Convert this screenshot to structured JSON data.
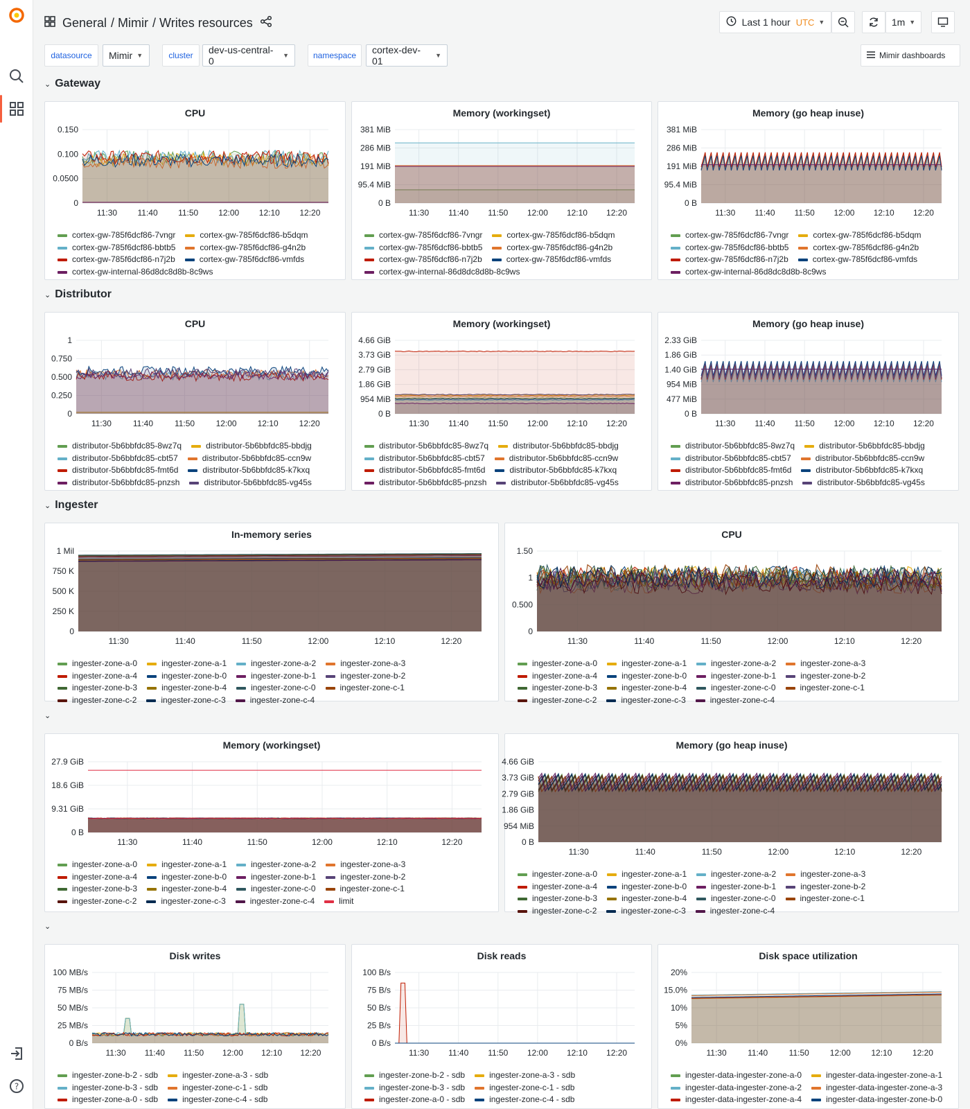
{
  "header": {
    "breadcrumb": [
      "General",
      "/ Mimir",
      "/ Writes resources"
    ],
    "time_range": "Last 1 hour",
    "timezone": "UTC",
    "refresh": "1m"
  },
  "variables": [
    {
      "label": "datasource",
      "value": "Mimir"
    },
    {
      "label": "cluster",
      "value": "dev-us-central-0"
    },
    {
      "label": "namespace",
      "value": "cortex-dev-01"
    }
  ],
  "links": {
    "dashboards": "Mimir dashboards"
  },
  "rows": {
    "gateway": "Gateway",
    "distributor": "Distributor",
    "ingester": "Ingester"
  },
  "colors": {
    "green": "#73bf69",
    "yellow": "#f2cc0c",
    "cyan": "#8ab8ff",
    "lightblue": "#6ed0e0",
    "orange": "#ff780a",
    "red": "#f2495c",
    "blue": "#5794f2",
    "darkblue": "#1f60c4",
    "purple": "#b877d9",
    "pink": "#d683ce"
  },
  "panels": [
    {
      "id": "gw-cpu",
      "title": "CPU",
      "yticks": [
        "0.150",
        "0.100",
        "0.0500",
        "0"
      ],
      "xticks": [
        "11:30",
        "11:40",
        "11:50",
        "12:00",
        "12:10",
        "12:20"
      ],
      "legend": [
        {
          "name": "cortex-gw-785f6dcf86-7vngr",
          "color": "#629e51"
        },
        {
          "name": "cortex-gw-785f6dcf86-b5dqm",
          "color": "#e5ac0e"
        },
        {
          "name": "cortex-gw-785f6dcf86-bbtb5",
          "color": "#64b0c8"
        },
        {
          "name": "cortex-gw-785f6dcf86-g4n2b",
          "color": "#e0752d"
        },
        {
          "name": "cortex-gw-785f6dcf86-n7j2b",
          "color": "#bf1b00"
        },
        {
          "name": "cortex-gw-785f6dcf86-vmfds",
          "color": "#0a437c"
        },
        {
          "name": "cortex-gw-internal-86d8dc8d8b-8c9ws",
          "color": "#6d1f62"
        }
      ]
    },
    {
      "id": "gw-mem",
      "title": "Memory (workingset)",
      "yticks": [
        "381 MiB",
        "286 MiB",
        "191 MiB",
        "95.4 MiB",
        "0 B"
      ],
      "xticks": [
        "11:30",
        "11:40",
        "11:50",
        "12:00",
        "12:10",
        "12:20"
      ],
      "legend": [
        {
          "name": "cortex-gw-785f6dcf86-7vngr",
          "color": "#629e51"
        },
        {
          "name": "cortex-gw-785f6dcf86-b5dqm",
          "color": "#e5ac0e"
        },
        {
          "name": "cortex-gw-785f6dcf86-bbtb5",
          "color": "#64b0c8"
        },
        {
          "name": "cortex-gw-785f6dcf86-g4n2b",
          "color": "#e0752d"
        },
        {
          "name": "cortex-gw-785f6dcf86-n7j2b",
          "color": "#bf1b00"
        },
        {
          "name": "cortex-gw-785f6dcf86-vmfds",
          "color": "#0a437c"
        },
        {
          "name": "cortex-gw-internal-86d8dc8d8b-8c9ws",
          "color": "#6d1f62"
        }
      ]
    },
    {
      "id": "gw-heap",
      "title": "Memory (go heap inuse)",
      "yticks": [
        "381 MiB",
        "286 MiB",
        "191 MiB",
        "95.4 MiB",
        "0 B"
      ],
      "xticks": [
        "11:30",
        "11:40",
        "11:50",
        "12:00",
        "12:10",
        "12:20"
      ],
      "legend": [
        {
          "name": "cortex-gw-785f6dcf86-7vngr",
          "color": "#629e51"
        },
        {
          "name": "cortex-gw-785f6dcf86-b5dqm",
          "color": "#e5ac0e"
        },
        {
          "name": "cortex-gw-785f6dcf86-bbtb5",
          "color": "#64b0c8"
        },
        {
          "name": "cortex-gw-785f6dcf86-g4n2b",
          "color": "#e0752d"
        },
        {
          "name": "cortex-gw-785f6dcf86-n7j2b",
          "color": "#bf1b00"
        },
        {
          "name": "cortex-gw-785f6dcf86-vmfds",
          "color": "#0a437c"
        },
        {
          "name": "cortex-gw-internal-86d8dc8d8b-8c9ws",
          "color": "#6d1f62"
        }
      ]
    },
    {
      "id": "d-cpu",
      "title": "CPU",
      "yticks": [
        "1",
        "0.750",
        "0.500",
        "0.250",
        "0"
      ],
      "xticks": [
        "11:30",
        "11:40",
        "11:50",
        "12:00",
        "12:10",
        "12:20"
      ],
      "legend": [
        {
          "name": "distributor-5b6bbfdc85-8wz7q",
          "color": "#629e51"
        },
        {
          "name": "distributor-5b6bbfdc85-bbdjg",
          "color": "#e5ac0e"
        },
        {
          "name": "distributor-5b6bbfdc85-cbt57",
          "color": "#64b0c8"
        },
        {
          "name": "distributor-5b6bbfdc85-ccn9w",
          "color": "#e0752d"
        },
        {
          "name": "distributor-5b6bbfdc85-fmt6d",
          "color": "#bf1b00"
        },
        {
          "name": "distributor-5b6bbfdc85-k7kxq",
          "color": "#0a437c"
        },
        {
          "name": "distributor-5b6bbfdc85-pnzsh",
          "color": "#6d1f62"
        },
        {
          "name": "distributor-5b6bbfdc85-vg45s",
          "color": "#584477"
        }
      ]
    },
    {
      "id": "d-mem",
      "title": "Memory (workingset)",
      "yticks": [
        "4.66 GiB",
        "3.73 GiB",
        "2.79 GiB",
        "1.86 GiB",
        "954 MiB",
        "0 B"
      ],
      "xticks": [
        "11:30",
        "11:40",
        "11:50",
        "12:00",
        "12:10",
        "12:20"
      ],
      "legend": [
        {
          "name": "distributor-5b6bbfdc85-8wz7q",
          "color": "#629e51"
        },
        {
          "name": "distributor-5b6bbfdc85-bbdjg",
          "color": "#e5ac0e"
        },
        {
          "name": "distributor-5b6bbfdc85-cbt57",
          "color": "#64b0c8"
        },
        {
          "name": "distributor-5b6bbfdc85-ccn9w",
          "color": "#e0752d"
        },
        {
          "name": "distributor-5b6bbfdc85-fmt6d",
          "color": "#bf1b00"
        },
        {
          "name": "distributor-5b6bbfdc85-k7kxq",
          "color": "#0a437c"
        },
        {
          "name": "distributor-5b6bbfdc85-pnzsh",
          "color": "#6d1f62"
        },
        {
          "name": "distributor-5b6bbfdc85-vg45s",
          "color": "#584477"
        }
      ]
    },
    {
      "id": "d-heap",
      "title": "Memory (go heap inuse)",
      "yticks": [
        "2.33 GiB",
        "1.86 GiB",
        "1.40 GiB",
        "954 MiB",
        "477 MiB",
        "0 B"
      ],
      "xticks": [
        "11:30",
        "11:40",
        "11:50",
        "12:00",
        "12:10",
        "12:20"
      ],
      "legend": [
        {
          "name": "distributor-5b6bbfdc85-8wz7q",
          "color": "#629e51"
        },
        {
          "name": "distributor-5b6bbfdc85-bbdjg",
          "color": "#e5ac0e"
        },
        {
          "name": "distributor-5b6bbfdc85-cbt57",
          "color": "#64b0c8"
        },
        {
          "name": "distributor-5b6bbfdc85-ccn9w",
          "color": "#e0752d"
        },
        {
          "name": "distributor-5b6bbfdc85-fmt6d",
          "color": "#bf1b00"
        },
        {
          "name": "distributor-5b6bbfdc85-k7kxq",
          "color": "#0a437c"
        },
        {
          "name": "distributor-5b6bbfdc85-pnzsh",
          "color": "#6d1f62"
        },
        {
          "name": "distributor-5b6bbfdc85-vg45s",
          "color": "#584477"
        }
      ]
    },
    {
      "id": "i-series",
      "title": "In-memory series",
      "yticks": [
        "1 Mil",
        "750 K",
        "500 K",
        "250 K",
        "0"
      ],
      "xticks": [
        "11:30",
        "11:40",
        "11:50",
        "12:00",
        "12:10",
        "12:20"
      ],
      "legend": [
        {
          "name": "ingester-zone-a-0",
          "color": "#629e51"
        },
        {
          "name": "ingester-zone-a-1",
          "color": "#e5ac0e"
        },
        {
          "name": "ingester-zone-a-2",
          "color": "#64b0c8"
        },
        {
          "name": "ingester-zone-a-3",
          "color": "#e0752d"
        },
        {
          "name": "ingester-zone-a-4",
          "color": "#bf1b00"
        },
        {
          "name": "ingester-zone-b-0",
          "color": "#0a437c"
        },
        {
          "name": "ingester-zone-b-1",
          "color": "#6d1f62"
        },
        {
          "name": "ingester-zone-b-2",
          "color": "#584477"
        },
        {
          "name": "ingester-zone-b-3",
          "color": "#3f6833"
        },
        {
          "name": "ingester-zone-b-4",
          "color": "#967302"
        },
        {
          "name": "ingester-zone-c-0",
          "color": "#2f575e"
        },
        {
          "name": "ingester-zone-c-1",
          "color": "#99440a"
        },
        {
          "name": "ingester-zone-c-2",
          "color": "#58140c"
        },
        {
          "name": "ingester-zone-c-3",
          "color": "#052b51"
        },
        {
          "name": "ingester-zone-c-4",
          "color": "#511749"
        }
      ]
    },
    {
      "id": "i-cpu",
      "title": "CPU",
      "yticks": [
        "1.50",
        "1",
        "0.500",
        "0"
      ],
      "xticks": [
        "11:30",
        "11:40",
        "11:50",
        "12:00",
        "12:10",
        "12:20"
      ],
      "legend": [
        {
          "name": "ingester-zone-a-0",
          "color": "#629e51"
        },
        {
          "name": "ingester-zone-a-1",
          "color": "#e5ac0e"
        },
        {
          "name": "ingester-zone-a-2",
          "color": "#64b0c8"
        },
        {
          "name": "ingester-zone-a-3",
          "color": "#e0752d"
        },
        {
          "name": "ingester-zone-a-4",
          "color": "#bf1b00"
        },
        {
          "name": "ingester-zone-b-0",
          "color": "#0a437c"
        },
        {
          "name": "ingester-zone-b-1",
          "color": "#6d1f62"
        },
        {
          "name": "ingester-zone-b-2",
          "color": "#584477"
        },
        {
          "name": "ingester-zone-b-3",
          "color": "#3f6833"
        },
        {
          "name": "ingester-zone-b-4",
          "color": "#967302"
        },
        {
          "name": "ingester-zone-c-0",
          "color": "#2f575e"
        },
        {
          "name": "ingester-zone-c-1",
          "color": "#99440a"
        },
        {
          "name": "ingester-zone-c-2",
          "color": "#58140c"
        },
        {
          "name": "ingester-zone-c-3",
          "color": "#052b51"
        },
        {
          "name": "ingester-zone-c-4",
          "color": "#511749"
        }
      ]
    },
    {
      "id": "i-mem",
      "title": "Memory (workingset)",
      "yticks": [
        "27.9 GiB",
        "18.6 GiB",
        "9.31 GiB",
        "0 B"
      ],
      "xticks": [
        "11:30",
        "11:40",
        "11:50",
        "12:00",
        "12:10",
        "12:20"
      ],
      "legend": [
        {
          "name": "ingester-zone-a-0",
          "color": "#629e51"
        },
        {
          "name": "ingester-zone-a-1",
          "color": "#e5ac0e"
        },
        {
          "name": "ingester-zone-a-2",
          "color": "#64b0c8"
        },
        {
          "name": "ingester-zone-a-3",
          "color": "#e0752d"
        },
        {
          "name": "ingester-zone-a-4",
          "color": "#bf1b00"
        },
        {
          "name": "ingester-zone-b-0",
          "color": "#0a437c"
        },
        {
          "name": "ingester-zone-b-1",
          "color": "#6d1f62"
        },
        {
          "name": "ingester-zone-b-2",
          "color": "#584477"
        },
        {
          "name": "ingester-zone-b-3",
          "color": "#3f6833"
        },
        {
          "name": "ingester-zone-b-4",
          "color": "#967302"
        },
        {
          "name": "ingester-zone-c-0",
          "color": "#2f575e"
        },
        {
          "name": "ingester-zone-c-1",
          "color": "#99440a"
        },
        {
          "name": "ingester-zone-c-2",
          "color": "#58140c"
        },
        {
          "name": "ingester-zone-c-3",
          "color": "#052b51"
        },
        {
          "name": "ingester-zone-c-4",
          "color": "#511749"
        },
        {
          "name": "limit",
          "color": "#e02f44"
        }
      ]
    },
    {
      "id": "i-heap",
      "title": "Memory (go heap inuse)",
      "yticks": [
        "4.66 GiB",
        "3.73 GiB",
        "2.79 GiB",
        "1.86 GiB",
        "954 MiB",
        "0 B"
      ],
      "xticks": [
        "11:30",
        "11:40",
        "11:50",
        "12:00",
        "12:10",
        "12:20"
      ],
      "legend": [
        {
          "name": "ingester-zone-a-0",
          "color": "#629e51"
        },
        {
          "name": "ingester-zone-a-1",
          "color": "#e5ac0e"
        },
        {
          "name": "ingester-zone-a-2",
          "color": "#64b0c8"
        },
        {
          "name": "ingester-zone-a-3",
          "color": "#e0752d"
        },
        {
          "name": "ingester-zone-a-4",
          "color": "#bf1b00"
        },
        {
          "name": "ingester-zone-b-0",
          "color": "#0a437c"
        },
        {
          "name": "ingester-zone-b-1",
          "color": "#6d1f62"
        },
        {
          "name": "ingester-zone-b-2",
          "color": "#584477"
        },
        {
          "name": "ingester-zone-b-3",
          "color": "#3f6833"
        },
        {
          "name": "ingester-zone-b-4",
          "color": "#967302"
        },
        {
          "name": "ingester-zone-c-0",
          "color": "#2f575e"
        },
        {
          "name": "ingester-zone-c-1",
          "color": "#99440a"
        },
        {
          "name": "ingester-zone-c-2",
          "color": "#58140c"
        },
        {
          "name": "ingester-zone-c-3",
          "color": "#052b51"
        },
        {
          "name": "ingester-zone-c-4",
          "color": "#511749"
        }
      ]
    },
    {
      "id": "disk-w",
      "title": "Disk writes",
      "yticks": [
        "100 MB/s",
        "75 MB/s",
        "50 MB/s",
        "25 MB/s",
        "0 B/s"
      ],
      "xticks": [
        "11:30",
        "11:40",
        "11:50",
        "12:00",
        "12:10",
        "12:20"
      ],
      "legend": [
        {
          "name": "ingester-zone-b-2 - sdb",
          "color": "#629e51"
        },
        {
          "name": "ingester-zone-a-3 - sdb",
          "color": "#e5ac0e"
        },
        {
          "name": "ingester-zone-b-3 - sdb",
          "color": "#64b0c8"
        },
        {
          "name": "ingester-zone-c-1 - sdb",
          "color": "#e0752d"
        },
        {
          "name": "ingester-zone-a-0 - sdb",
          "color": "#bf1b00"
        },
        {
          "name": "ingester-zone-c-4 - sdb",
          "color": "#0a437c"
        }
      ]
    },
    {
      "id": "disk-r",
      "title": "Disk reads",
      "yticks": [
        "100 B/s",
        "75 B/s",
        "50 B/s",
        "25 B/s",
        "0 B/s"
      ],
      "xticks": [
        "11:30",
        "11:40",
        "11:50",
        "12:00",
        "12:10",
        "12:20"
      ],
      "legend": [
        {
          "name": "ingester-zone-b-2 - sdb",
          "color": "#629e51"
        },
        {
          "name": "ingester-zone-a-3 - sdb",
          "color": "#e5ac0e"
        },
        {
          "name": "ingester-zone-b-3 - sdb",
          "color": "#64b0c8"
        },
        {
          "name": "ingester-zone-c-1 - sdb",
          "color": "#e0752d"
        },
        {
          "name": "ingester-zone-a-0 - sdb",
          "color": "#bf1b00"
        },
        {
          "name": "ingester-zone-c-4 - sdb",
          "color": "#0a437c"
        }
      ]
    },
    {
      "id": "disk-u",
      "title": "Disk space utilization",
      "yticks": [
        "20%",
        "15.0%",
        "10%",
        "5%",
        "0%"
      ],
      "xticks": [
        "11:30",
        "11:40",
        "11:50",
        "12:00",
        "12:10",
        "12:20"
      ],
      "legend": [
        {
          "name": "ingester-data-ingester-zone-a-0",
          "color": "#629e51"
        },
        {
          "name": "ingester-data-ingester-zone-a-1",
          "color": "#e5ac0e"
        },
        {
          "name": "ingester-data-ingester-zone-a-2",
          "color": "#64b0c8"
        },
        {
          "name": "ingester-data-ingester-zone-a-3",
          "color": "#e0752d"
        },
        {
          "name": "ingester-data-ingester-zone-a-4",
          "color": "#bf1b00"
        },
        {
          "name": "ingester-data-ingester-zone-b-0",
          "color": "#0a437c"
        }
      ]
    }
  ]
}
